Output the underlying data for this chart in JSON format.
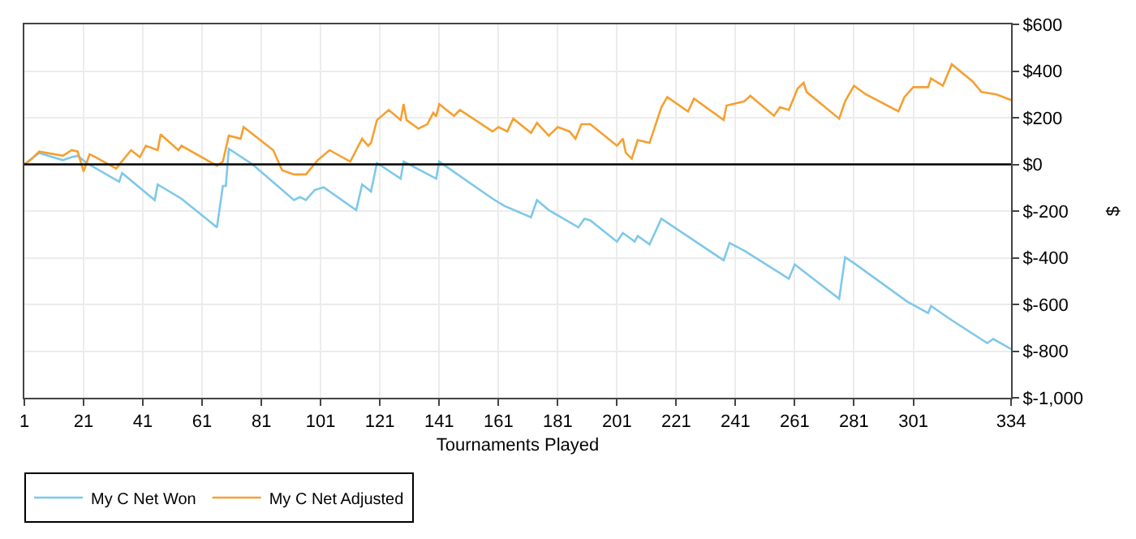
{
  "chart_data": {
    "type": "line",
    "xlabel": "Tournaments Played",
    "ylabel": "$",
    "xlim": [
      1,
      334
    ],
    "xticks": [
      1,
      21,
      41,
      61,
      81,
      101,
      121,
      141,
      161,
      181,
      201,
      221,
      241,
      261,
      281,
      301,
      334
    ],
    "ylim": [
      -1000,
      600
    ],
    "yticks": [
      {
        "value": -1000,
        "label": "$-1,000"
      },
      {
        "value": -800,
        "label": "$-800"
      },
      {
        "value": -600,
        "label": "$-600"
      },
      {
        "value": -400,
        "label": "$-400"
      },
      {
        "value": -200,
        "label": "$-200"
      },
      {
        "value": 0,
        "label": "$0"
      },
      {
        "value": 200,
        "label": "$200"
      },
      {
        "value": 400,
        "label": "$400"
      },
      {
        "value": 600,
        "label": "$600"
      }
    ],
    "grid": true,
    "legend": "bottom left",
    "marker": "none",
    "line_style": "solid",
    "ref_lines": [
      {
        "axis": "y",
        "value": 0,
        "color": "#000000"
      }
    ],
    "series": [
      {
        "name": "My C Net Won",
        "color": "#7ec8ea",
        "x": [
          1,
          6,
          14,
          17,
          19,
          22,
          33,
          34,
          45,
          46,
          54,
          66,
          68,
          69,
          70,
          78,
          92,
          94,
          96,
          99,
          102,
          113,
          115,
          118,
          120,
          128,
          129,
          140,
          141,
          159,
          163,
          172,
          174,
          178,
          188,
          190,
          192,
          201,
          203,
          207,
          208,
          212,
          216,
          237,
          239,
          244,
          259,
          261,
          276,
          278,
          281,
          299,
          306,
          307,
          314,
          326,
          328,
          334
        ],
        "values": [
          0,
          49,
          18,
          31,
          37,
          6,
          -74,
          -37,
          -153,
          -86,
          -147,
          -270,
          -92,
          -92,
          67,
          0,
          -153,
          -140,
          -153,
          -110,
          -98,
          -196,
          -86,
          -116,
          6,
          -61,
          12,
          -61,
          12,
          -147,
          -178,
          -227,
          -153,
          -196,
          -270,
          -233,
          -240,
          -331,
          -294,
          -331,
          -307,
          -343,
          -233,
          -411,
          -337,
          -370,
          -490,
          -429,
          -576,
          -398,
          -423,
          -588,
          -637,
          -607,
          -668,
          -766,
          -748,
          -791
        ]
      },
      {
        "name": "My C Net Adjusted",
        "color": "#f5a032",
        "x": [
          1,
          3,
          6,
          14,
          17,
          19,
          21,
          23,
          25,
          32,
          37,
          40,
          42,
          46,
          47,
          53,
          54,
          66,
          68,
          70,
          74,
          75,
          85,
          88,
          92,
          96,
          100,
          104,
          111,
          115,
          117,
          118,
          120,
          124,
          128,
          129,
          130,
          134,
          137,
          139,
          140,
          141,
          146,
          148,
          159,
          161,
          164,
          166,
          172,
          174,
          178,
          181,
          185,
          187,
          189,
          192,
          201,
          203,
          204,
          206,
          208,
          212,
          216,
          218,
          225,
          227,
          237,
          238,
          244,
          246,
          254,
          256,
          259,
          262,
          264,
          265,
          276,
          278,
          281,
          285,
          296,
          298,
          301,
          306,
          307,
          311,
          314,
          321,
          324,
          329,
          334
        ],
        "values": [
          0,
          18,
          55,
          37,
          61,
          55,
          -31,
          43,
          31,
          -18,
          61,
          31,
          80,
          61,
          129,
          61,
          80,
          -6,
          12,
          123,
          110,
          160,
          61,
          -25,
          -43,
          -43,
          18,
          61,
          12,
          110,
          80,
          92,
          190,
          233,
          190,
          258,
          190,
          153,
          172,
          221,
          205,
          258,
          208,
          233,
          141,
          160,
          141,
          196,
          135,
          178,
          123,
          160,
          141,
          110,
          172,
          172,
          80,
          110,
          49,
          25,
          104,
          92,
          245,
          288,
          227,
          282,
          190,
          252,
          270,
          294,
          208,
          245,
          233,
          325,
          350,
          310,
          196,
          270,
          337,
          300,
          227,
          288,
          331,
          331,
          368,
          337,
          429,
          356,
          310,
          300,
          276
        ]
      }
    ]
  }
}
